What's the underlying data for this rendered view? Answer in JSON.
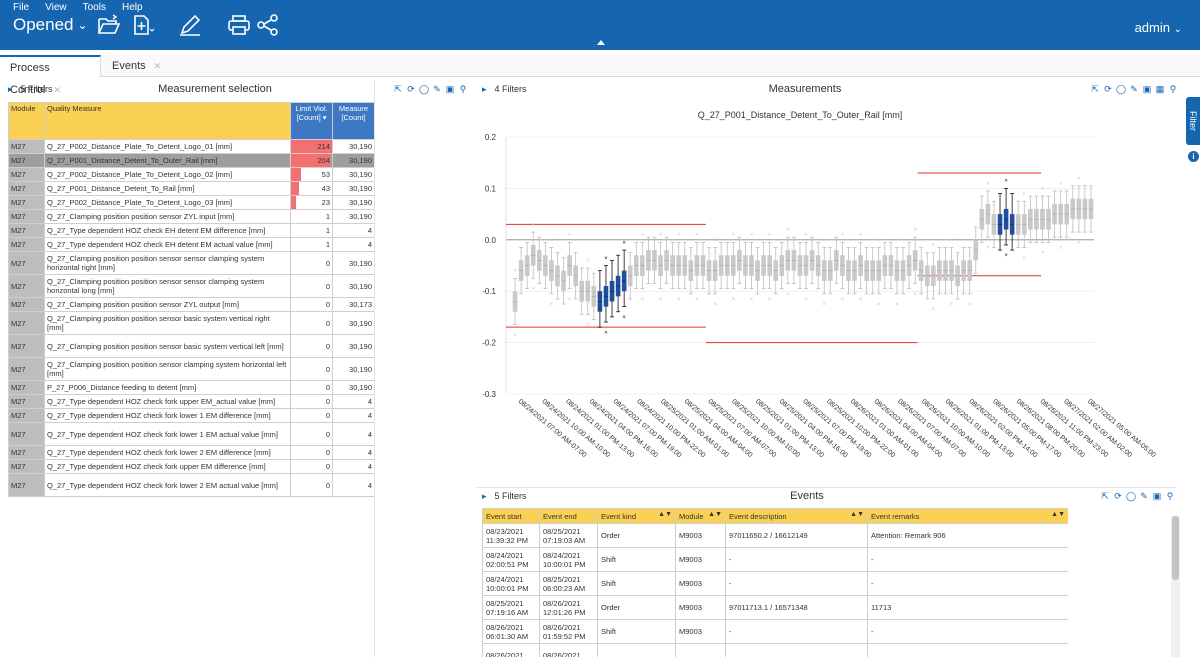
{
  "menu": [
    "File",
    "View",
    "Tools",
    "Help"
  ],
  "toolbar": {
    "opened_label": "Opened",
    "user": "admin"
  },
  "tabs": [
    "Process Control",
    "Events"
  ],
  "measurement_panel": {
    "filters": "5 Filters",
    "title": "Measurement selection",
    "headers": [
      "Module",
      "Quality Measure",
      "Limit Viol. [Count]",
      "Measure [Count]"
    ],
    "rows": [
      {
        "module": "M27",
        "measure": "Q_27_P002_Distance_Plate_To_Detent_Logo_01 [mm]",
        "viol": "214",
        "count": "30,190",
        "bar": 1.0
      },
      {
        "module": "M27",
        "measure": "Q_27_P001_Distance_Detent_To_Outer_Rail [mm]",
        "viol": "204",
        "count": "30,190",
        "bar": 0.95,
        "selected": true
      },
      {
        "module": "M27",
        "measure": "Q_27_P002_Distance_Plate_To_Detent_Logo_02 [mm]",
        "viol": "53",
        "count": "30,190",
        "bar": 0.25
      },
      {
        "module": "M27",
        "measure": "Q_27_P001_Distance_Detent_To_Rail [mm]",
        "viol": "43",
        "count": "30,190",
        "bar": 0.2
      },
      {
        "module": "M27",
        "measure": "Q_27_P002_Distance_Plate_To_Detent_Logo_03 [mm]",
        "viol": "23",
        "count": "30,190",
        "bar": 0.11
      },
      {
        "module": "M27",
        "measure": "Q_27_Clamping position position sensor ZYL input [mm]",
        "viol": "1",
        "count": "30,190",
        "bar": 0
      },
      {
        "module": "M27",
        "measure": "Q_27_Type dependent HOZ check EH detent EM difference [mm]",
        "viol": "1",
        "count": "4",
        "bar": 0
      },
      {
        "module": "M27",
        "measure": "Q_27_Type dependent HOZ check EH detent EM actual value [mm]",
        "viol": "1",
        "count": "4",
        "bar": 0
      },
      {
        "module": "M27",
        "measure": "Q_27_Clamping position position sensor sensor clamping system horizontal right [mm]",
        "viol": "0",
        "count": "30,190",
        "bar": 0,
        "tall": true
      },
      {
        "module": "M27",
        "measure": "Q_27_Clamping position position sensor sensor clamping system horizontal long [mm]",
        "viol": "0",
        "count": "30,190",
        "bar": 0,
        "tall": true
      },
      {
        "module": "M27",
        "measure": "Q_27_Clamping position position sensor ZYL output [mm]",
        "viol": "0",
        "count": "30,173",
        "bar": 0
      },
      {
        "module": "M27",
        "measure": "Q_27_Clamping position position sensor basic system vertical right [mm]",
        "viol": "0",
        "count": "30,190",
        "bar": 0,
        "tall": true
      },
      {
        "module": "M27",
        "measure": "Q_27_Clamping position position sensor basic system vertical left [mm]",
        "viol": "0",
        "count": "30,190",
        "bar": 0,
        "tall": true
      },
      {
        "module": "M27",
        "measure": "Q_27_Clamping position position sensor clamping system horizontal left [mm]",
        "viol": "0",
        "count": "30,190",
        "bar": 0,
        "tall": true
      },
      {
        "module": "M27",
        "measure": "P_27_P006_Distance feeding to detent [mm]",
        "viol": "0",
        "count": "30,190",
        "bar": 0
      },
      {
        "module": "M27",
        "measure": "Q_27_Type dependent HOZ check fork upper EM_actual value [mm]",
        "viol": "0",
        "count": "4",
        "bar": 0
      },
      {
        "module": "M27",
        "measure": "Q_27_Type dependent HOZ check fork lower 1 EM difference [mm]",
        "viol": "0",
        "count": "4",
        "bar": 0
      },
      {
        "module": "M27",
        "measure": "Q_27_Type dependent HOZ check fork lower 1 EM actual value [mm]",
        "viol": "0",
        "count": "4",
        "bar": 0,
        "tall": true
      },
      {
        "module": "M27",
        "measure": "Q_27_Type dependent HOZ check fork lower 2 EM difference [mm]",
        "viol": "0",
        "count": "4",
        "bar": 0
      },
      {
        "module": "M27",
        "measure": "Q_27_Type dependent HOZ check fork upper EM difference [mm]",
        "viol": "0",
        "count": "4",
        "bar": 0
      },
      {
        "module": "M27",
        "measure": "Q_27_Type dependent HOZ check fork lower 2 EM actual value [mm]",
        "viol": "0",
        "count": "4",
        "bar": 0,
        "tall": true
      }
    ]
  },
  "measurements_panel": {
    "filters": "4 Filters",
    "title": "Measurements"
  },
  "events_panel": {
    "filters": "5 Filters",
    "title": "Events",
    "headers": [
      "Event start",
      "Event end",
      "Event kind",
      "Module",
      "Event description",
      "Event remarks"
    ],
    "rows": [
      {
        "start": "08/23/2021 11:39:32 PM",
        "end": "08/25/2021 07:19:03 AM",
        "kind": "Order",
        "module": "M9003",
        "desc": "97011650.2 / 16612149",
        "remarks": "Attention: Remark 906"
      },
      {
        "start": "08/24/2021 02:00:51 PM",
        "end": "08/24/2021 10:00:01 PM",
        "kind": "Shift",
        "module": "M9003",
        "desc": "-",
        "remarks": "-"
      },
      {
        "start": "08/24/2021 10:00:01 PM",
        "end": "08/25/2021 06:00:23 AM",
        "kind": "Shift",
        "module": "M9003",
        "desc": "-",
        "remarks": "-"
      },
      {
        "start": "08/25/2021 07:19:16 AM",
        "end": "08/26/2021 12:01:26 PM",
        "kind": "Order",
        "module": "M9003",
        "desc": "97011713.1 / 16571348",
        "remarks": "11713"
      },
      {
        "start": "08/26/2021 06:01:30 AM",
        "end": "08/26/2021 01:59:52 PM",
        "kind": "Shift",
        "module": "M9003",
        "desc": "-",
        "remarks": "-"
      },
      {
        "start": "08/26/2021",
        "end": "08/26/2021",
        "kind": "",
        "module": "",
        "desc": "",
        "remarks": ""
      }
    ]
  },
  "side": {
    "filter_tab": "Filter",
    "info": "i"
  },
  "chart_data": {
    "type": "box",
    "title": "Q_27_P001_Distance_Detent_To_Outer_Rail [mm]",
    "ylim": [
      -0.3,
      0.2
    ],
    "yticks": [
      "0.2",
      "0.1",
      "0.0",
      "-0.1",
      "-0.2",
      "-0.3"
    ],
    "xticks": [
      "08/24/2021 07:00 AM-07:00",
      "08/24/2021 10:00 AM-10:00",
      "08/24/2021 01:00 PM-13:00",
      "08/24/2021 04:00 PM-16:00",
      "08/24/2021 07:00 PM-19:00",
      "08/24/2021 10:00 PM-22:00",
      "08/25/2021 01:00 AM-01:00",
      "08/25/2021 04:00 AM-04:00",
      "08/25/2021 07:00 AM-07:00",
      "08/25/2021 10:00 AM-10:00",
      "08/25/2021 01:00 PM-13:00",
      "08/25/2021 04:00 PM-16:00",
      "08/25/2021 07:00 PM-19:00",
      "08/25/2021 10:00 PM-22:00",
      "08/26/2021 01:00 AM-01:00",
      "08/26/2021 04:00 AM-04:00",
      "08/26/2021 07:00 AM-07:00",
      "08/26/2021 10:00 AM-10:00",
      "08/26/2021 01:00 PM-13:00",
      "08/26/2021 02:00 PM-14:00",
      "08/26/2021 05:00 PM-17:00",
      "08/26/2021 08:00 PM-20:00",
      "08/26/2021 11:00 PM-23:00",
      "08/27/2021 02:00 AM-02:00",
      "08/27/2021 05:00 AM-05:00"
    ],
    "limit_segments": [
      {
        "x0": 0,
        "x1": 0.34,
        "upper": 0.03,
        "lower": -0.17
      },
      {
        "x0": 0.34,
        "x1": 0.7,
        "upper": null,
        "lower": -0.2
      },
      {
        "x0": 0.7,
        "x1": 0.91,
        "upper": 0.13,
        "lower": -0.07
      }
    ],
    "medians": [
      -0.12,
      -0.06,
      -0.05,
      -0.03,
      -0.04,
      -0.05,
      -0.06,
      -0.07,
      -0.08,
      -0.05,
      -0.07,
      -0.1,
      -0.1,
      -0.11,
      -0.12,
      -0.11,
      -0.1,
      -0.09,
      -0.08,
      -0.07,
      -0.05,
      -0.05,
      -0.04,
      -0.04,
      -0.05,
      -0.04,
      -0.05,
      -0.05,
      -0.05,
      -0.06,
      -0.05,
      -0.05,
      -0.06,
      -0.06,
      -0.05,
      -0.05,
      -0.05,
      -0.04,
      -0.05,
      -0.05,
      -0.06,
      -0.05,
      -0.05,
      -0.06,
      -0.05,
      -0.04,
      -0.04,
      -0.05,
      -0.05,
      -0.04,
      -0.05,
      -0.06,
      -0.06,
      -0.04,
      -0.05,
      -0.06,
      -0.06,
      -0.05,
      -0.06,
      -0.06,
      -0.06,
      -0.05,
      -0.05,
      -0.06,
      -0.06,
      -0.05,
      -0.04,
      -0.06,
      -0.07,
      -0.07,
      -0.06,
      -0.06,
      -0.06,
      -0.07,
      -0.06,
      -0.06,
      -0.02,
      0.04,
      0.05,
      0.03,
      0.03,
      0.04,
      0.03,
      0.03,
      0.03,
      0.04,
      0.04,
      0.04,
      0.04,
      0.05,
      0.05,
      0.05,
      0.06,
      0.06,
      0.06,
      0.06
    ],
    "highlight": [
      14,
      15,
      16,
      17,
      18,
      80,
      81,
      82
    ]
  }
}
